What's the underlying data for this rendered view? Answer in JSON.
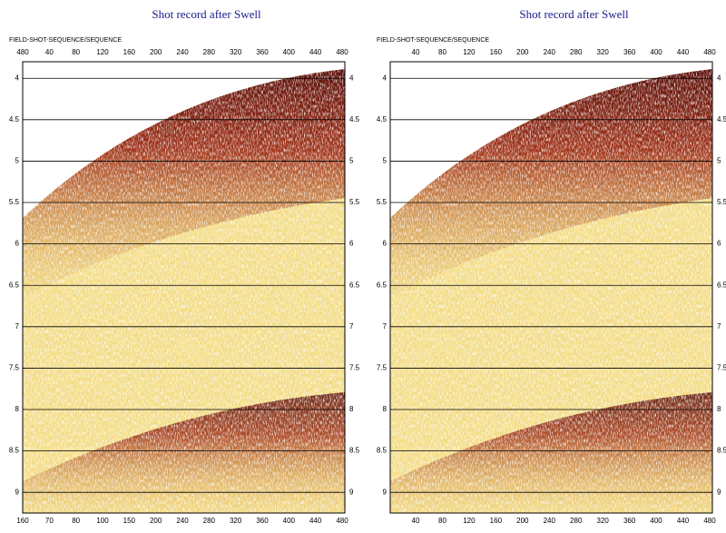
{
  "chart_data": [
    {
      "type": "seismic",
      "title": "Shot record after Swell",
      "header": "FIELD-SHOT-SEQUENCE/SEQUENCE",
      "ylim": [
        3.8,
        9.25
      ],
      "yticks": [
        4,
        4.5,
        5,
        5.5,
        6,
        6.5,
        7,
        7.5,
        8,
        8.5,
        9
      ],
      "top_labels": [
        "480",
        "40",
        "80",
        "120",
        "160",
        "200",
        "240",
        "280",
        "320",
        "360",
        "400",
        "440",
        "480"
      ],
      "bottom_labels": [
        "160",
        "70",
        "80",
        "100",
        "150",
        "200",
        "240",
        "280",
        "320",
        "360",
        "400",
        "440",
        "480"
      ]
    },
    {
      "type": "seismic",
      "title": "Shot record after Swell",
      "header": "FIELD-SHOT-SEQUENCE/SEQUENCE",
      "ylim": [
        3.8,
        9.25
      ],
      "yticks": [
        4,
        4.5,
        5,
        5.5,
        6,
        6.5,
        7,
        7.5,
        8,
        8.5,
        9
      ],
      "top_labels": [
        "40",
        "80",
        "120",
        "160",
        "200",
        "240",
        "280",
        "320",
        "360",
        "400",
        "440",
        "480"
      ],
      "bottom_labels": [
        "40",
        "80",
        "120",
        "160",
        "200",
        "240",
        "280",
        "320",
        "360",
        "400",
        "440",
        "480"
      ]
    }
  ]
}
